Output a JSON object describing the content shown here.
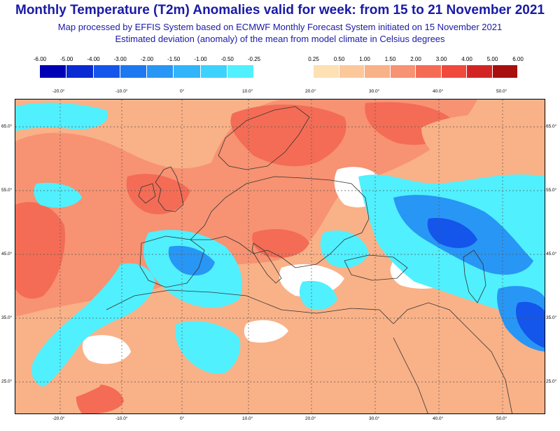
{
  "title": "Monthly Temperature (T2m) Anomalies valid for week: from 15 to 21 November 2021",
  "subtitle_1": "Map processed by EFFIS System based on ECMWF Monthly Forecast System initiated on 15 November 2021",
  "subtitle_2": "Estimated deviation (anomaly) of the mean from model climate in Celsius degrees",
  "legend_negative": {
    "labels": [
      "-6.00",
      "-5.00",
      "-4.00",
      "-3.00",
      "-2.00",
      "-1.50",
      "-1.00",
      "-0.50",
      "-0.25"
    ],
    "colors": [
      "#0000b4",
      "#0a2ad2",
      "#1455eb",
      "#1e78f0",
      "#2896f5",
      "#32b4fa",
      "#3cd2fc",
      "#50f0ff"
    ]
  },
  "legend_positive": {
    "labels": [
      "0.25",
      "0.50",
      "1.00",
      "1.50",
      "2.00",
      "3.00",
      "4.00",
      "5.00",
      "6.00"
    ],
    "colors": [
      "#fde0b4",
      "#fcc89b",
      "#f9b187",
      "#f79272",
      "#f46c55",
      "#ef4a3c",
      "#d22523",
      "#a80f0f"
    ]
  },
  "map": {
    "longitude_labels": [
      "-20.0°",
      "-10.0°",
      "0°",
      "10.0°",
      "20.0°",
      "30.0°",
      "40.0°",
      "50.0°"
    ],
    "latitude_labels": [
      "65.0°",
      "55.0°",
      "45.0°",
      "35.0°",
      "25.0°"
    ],
    "colors": {
      "warm_light": "#f9b187",
      "warm_mid": "#f79272",
      "warm_strong": "#f46c55",
      "cool_light": "#50f0ff",
      "cool_mid": "#2896f5",
      "cool_strong": "#1455eb",
      "neutral": "#ffffff",
      "coastline": "#333333",
      "grid": "#555555"
    }
  }
}
